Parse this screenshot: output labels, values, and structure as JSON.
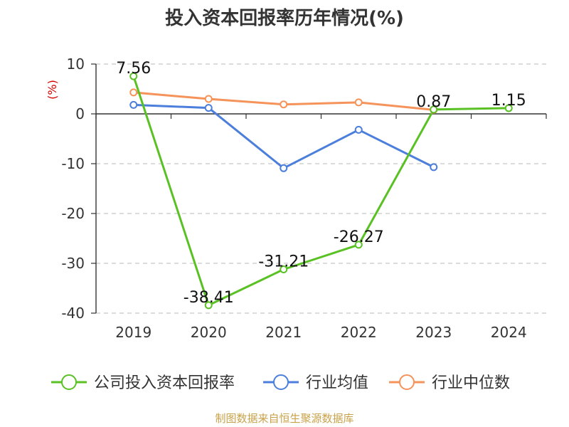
{
  "chart_data": {
    "type": "line",
    "title": "投入资本回报率历年情况(%)",
    "ylabel": "(%)",
    "categories": [
      "2019",
      "2020",
      "2021",
      "2022",
      "2023",
      "2024"
    ],
    "ylim": [
      -40,
      10
    ],
    "yticks": [
      10,
      0,
      -10,
      -20,
      -30,
      -40
    ],
    "grid": true,
    "legend_position": "bottom",
    "series": [
      {
        "name": "公司投入资本回报率",
        "color": "#5ac124",
        "values": [
          7.56,
          -38.41,
          -31.21,
          -26.27,
          0.87,
          1.15
        ],
        "labels": [
          "7.56",
          "-38.41",
          "-31.21",
          "-26.27",
          "0.87",
          "1.15"
        ]
      },
      {
        "name": "行业均值",
        "color": "#4c7fdc",
        "values": [
          1.8,
          1.2,
          -10.9,
          -3.2,
          -10.7,
          null
        ]
      },
      {
        "name": "行业中位数",
        "color": "#f5935a",
        "values": [
          4.3,
          3.0,
          1.9,
          2.3,
          0.8,
          null
        ]
      }
    ]
  },
  "footer": {
    "source": "制图数据来自恒生聚源数据库"
  }
}
